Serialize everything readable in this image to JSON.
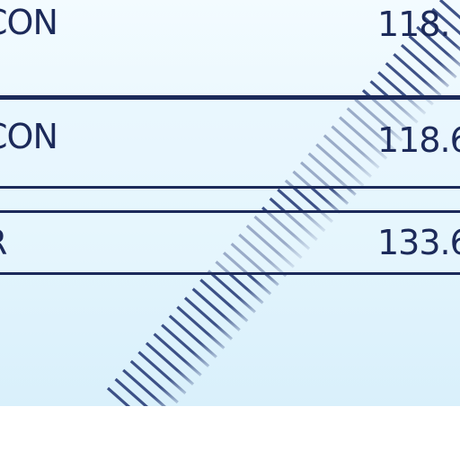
{
  "frequency_list": {
    "rows": [
      {
        "name": "CON",
        "frequency": "118."
      },
      {
        "name": "CON",
        "frequency": "118.6"
      },
      {
        "name": "R",
        "frequency": "133.6"
      }
    ]
  },
  "colors": {
    "ink": "#1c2a5a",
    "background": "#e4f5fd",
    "stripe": "#2a3f7a"
  }
}
